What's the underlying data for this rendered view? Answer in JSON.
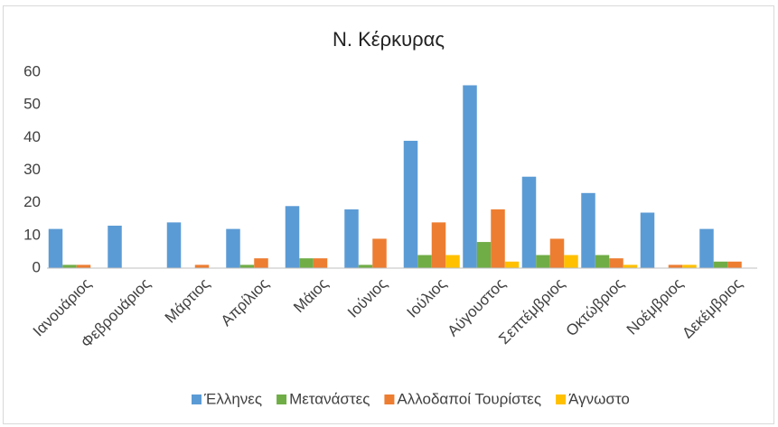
{
  "chart_data": {
    "type": "bar",
    "title": "Ν. Κέρκυρας",
    "categories": [
      "Ιανουάριος",
      "Φεβρουάριος",
      "Μάρτιος",
      "Απρίλιος",
      "Μάιος",
      "Ιούνιος",
      "Ιούλιος",
      "Αύγουστος",
      "Σεπτέμβριος",
      "Οκτώβριος",
      "Νοέμβριος",
      "Δεκέμβριος"
    ],
    "series": [
      {
        "name": "Έλληνες",
        "color": "#5b9bd5",
        "values": [
          12,
          13,
          14,
          12,
          19,
          18,
          39,
          56,
          28,
          23,
          17,
          12
        ]
      },
      {
        "name": "Μετανάστες",
        "color": "#70ad47",
        "values": [
          1,
          0,
          0,
          1,
          3,
          1,
          4,
          8,
          4,
          4,
          0,
          2
        ]
      },
      {
        "name": "Αλλοδαποί Τουρίστες",
        "color": "#ed7d31",
        "values": [
          1,
          0,
          1,
          3,
          3,
          9,
          14,
          18,
          9,
          3,
          1,
          2
        ]
      },
      {
        "name": "Άγνωστο",
        "color": "#ffc000",
        "values": [
          0,
          0,
          0,
          0,
          0,
          0,
          4,
          2,
          4,
          1,
          1,
          0
        ]
      }
    ],
    "ylim": [
      0,
      60
    ],
    "yticks": [
      0,
      10,
      20,
      30,
      40,
      50,
      60
    ],
    "grid": false,
    "legend": "bottom"
  }
}
